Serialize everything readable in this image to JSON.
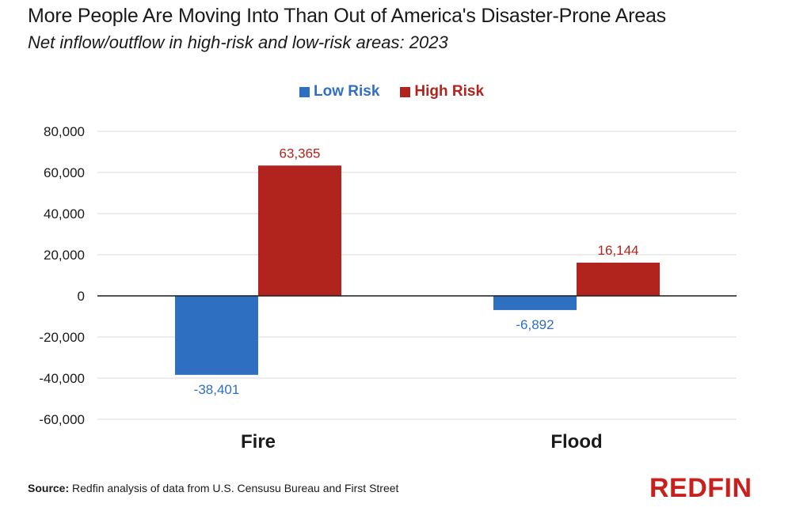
{
  "header": {
    "title": "More People Are Moving Into Than Out of America's Disaster-Prone Areas",
    "subtitle": "Net inflow/outflow in high-risk and low-risk areas: 2023"
  },
  "footer": {
    "source_label": "Source:",
    "source_text": "Redfin analysis of data from U.S. Censusu Bureau and First Street",
    "logo": "REDFIN"
  },
  "colors": {
    "low_risk": "#2f6fc1",
    "high_risk": "#b0241d",
    "logo": "#c8201d"
  },
  "chart_data": {
    "type": "bar",
    "title": "More People Are Moving Into Than Out of America's Disaster-Prone Areas",
    "subtitle": "Net inflow/outflow in high-risk and low-risk areas: 2023",
    "categories": [
      "Fire",
      "Flood"
    ],
    "series": [
      {
        "name": "Low Risk",
        "color": "#2f6fc1",
        "values": [
          -38401,
          -6892
        ],
        "labels": [
          "-38,401",
          "-6,892"
        ]
      },
      {
        "name": "High Risk",
        "color": "#b0241d",
        "values": [
          63365,
          16144
        ],
        "labels": [
          "63,365",
          "16,144"
        ]
      }
    ],
    "ylim": [
      -60000,
      80000
    ],
    "yticks": [
      80000,
      60000,
      40000,
      20000,
      0,
      -20000,
      -40000,
      -60000
    ],
    "ytick_labels": [
      "80,000",
      "60,000",
      "40,000",
      "20,000",
      "0",
      "-20,000",
      "-40,000",
      "-60,000"
    ],
    "grid": true,
    "legend_position": "top-center",
    "xlabel": "",
    "ylabel": ""
  }
}
